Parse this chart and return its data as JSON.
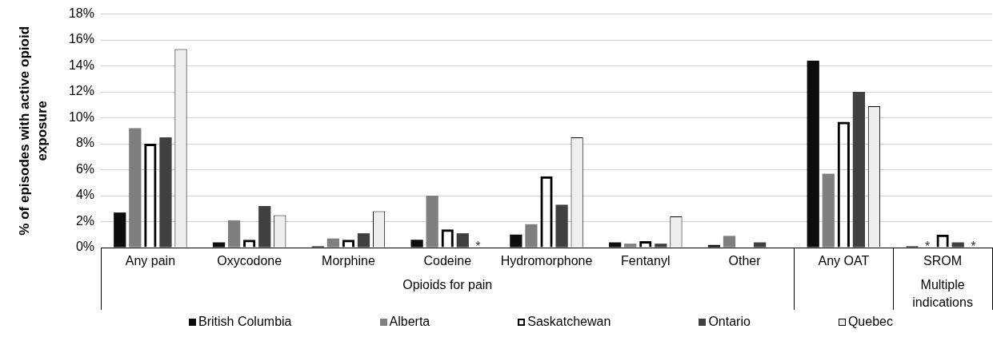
{
  "chart_data": {
    "type": "bar",
    "ylabel": "% of episodes with active opioid exposure",
    "categories": [
      "Any pain",
      "Oxycodone",
      "Morphine",
      "Codeine",
      "Hydromorphone",
      "Fentanyl",
      "Other",
      "Any OAT",
      "SROM"
    ],
    "series": [
      {
        "name": "British Columbia",
        "color": "#0d0d0d",
        "values": [
          2.7,
          0.4,
          0.1,
          0.6,
          1.0,
          0.4,
          0.2,
          14.4,
          0.1
        ]
      },
      {
        "name": "Alberta",
        "color": "#7f7f7f",
        "values": [
          9.2,
          2.1,
          0.7,
          4.0,
          1.8,
          0.3,
          0.9,
          5.7,
          null
        ],
        "value_labels": [
          null,
          null,
          null,
          null,
          null,
          null,
          null,
          null,
          "*"
        ]
      },
      {
        "name": "Saskatchewan",
        "color": "#000000",
        "values": [
          8.0,
          0.6,
          0.6,
          1.4,
          5.5,
          0.5,
          null,
          9.7,
          1.0
        ]
      },
      {
        "name": "Ontario",
        "color": "#404040",
        "values": [
          8.5,
          3.2,
          1.1,
          1.1,
          3.3,
          0.3,
          0.4,
          12.0,
          0.4
        ]
      },
      {
        "name": "Quebec",
        "color": "#eeeeee",
        "values": [
          15.3,
          2.5,
          2.8,
          null,
          8.5,
          2.4,
          null,
          10.9,
          null
        ],
        "value_labels": [
          null,
          null,
          null,
          "*",
          null,
          null,
          null,
          null,
          "*"
        ]
      }
    ],
    "ylim": [
      0,
      18
    ],
    "yticks": [
      {
        "value": 0,
        "label": "0%"
      },
      {
        "value": 2,
        "label": "2%"
      },
      {
        "value": 4,
        "label": "4%"
      },
      {
        "value": 6,
        "label": "6%"
      },
      {
        "value": 8,
        "label": "8%"
      },
      {
        "value": 10,
        "label": "10%"
      },
      {
        "value": 12,
        "label": "12%"
      },
      {
        "value": 14,
        "label": "14%"
      },
      {
        "value": 16,
        "label": "16%"
      },
      {
        "value": 18,
        "label": "18%"
      }
    ],
    "grid": "y",
    "legend": "bottom",
    "annotations": [
      "Opioids for pain",
      "Multiple indications"
    ]
  }
}
